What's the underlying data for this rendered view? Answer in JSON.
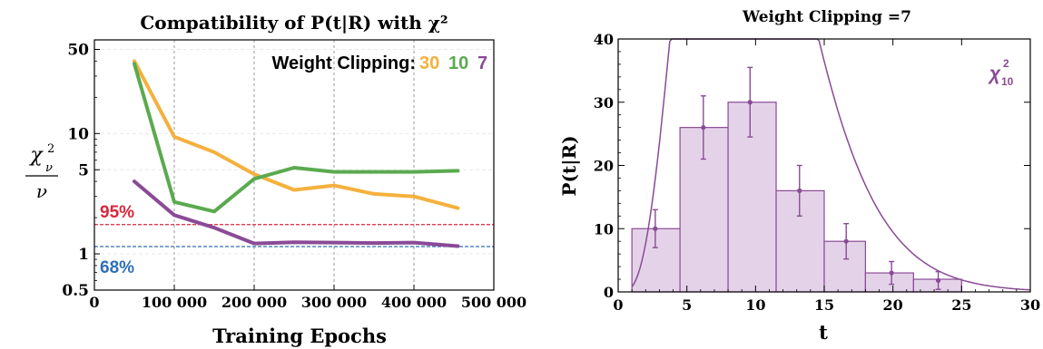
{
  "chart_data": [
    {
      "type": "line",
      "title": "Compatibility of P(t|R) with χ²",
      "xlabel": "Training Epochs",
      "ylabel": "χ²ν / ν",
      "yscale": "log",
      "xlim": [
        0,
        500000
      ],
      "ylim": [
        0.5,
        60
      ],
      "xticks": [
        0,
        100000,
        200000,
        300000,
        400000,
        500000
      ],
      "xtick_labels": [
        "0",
        "100 000",
        "200 000",
        "300 000",
        "400 000",
        "500 000"
      ],
      "yticks": [
        0.5,
        1,
        5,
        10,
        50
      ],
      "ytick_labels": [
        "0.5",
        "1",
        "5",
        "10",
        "50"
      ],
      "grid": true,
      "legend": {
        "title": "Weight Clipping:",
        "position": "top-right"
      },
      "series": [
        {
          "name": "30",
          "color": "#f5b13d",
          "x": [
            50000,
            100000,
            150000,
            200000,
            250000,
            300000,
            350000,
            400000,
            455000
          ],
          "y": [
            40,
            9.4,
            7.0,
            4.6,
            3.4,
            3.7,
            3.15,
            3.0,
            2.4
          ]
        },
        {
          "name": "10",
          "color": "#5aaa4e",
          "x": [
            50000,
            100000,
            150000,
            200000,
            250000,
            300000,
            350000,
            400000,
            455000
          ],
          "y": [
            38,
            2.7,
            2.25,
            4.2,
            5.2,
            4.8,
            4.8,
            4.8,
            4.9
          ]
        },
        {
          "name": "7",
          "color": "#8a4a96",
          "x": [
            50000,
            100000,
            150000,
            200000,
            250000,
            300000,
            350000,
            400000,
            455000
          ],
          "y": [
            4.0,
            2.1,
            1.65,
            1.22,
            1.25,
            1.24,
            1.23,
            1.24,
            1.16
          ]
        }
      ],
      "reference_lines": [
        {
          "label": "95%",
          "y": 1.75,
          "color": "#d9283c"
        },
        {
          "label": "68%",
          "y": 1.15,
          "color": "#2e6fb7"
        }
      ]
    },
    {
      "type": "bar",
      "title": "Weight Clipping =7",
      "xlabel": "t",
      "ylabel": "P(t|R)",
      "xlim": [
        0,
        30
      ],
      "ylim": [
        0,
        40
      ],
      "xticks": [
        0,
        5,
        10,
        15,
        20,
        25,
        30
      ],
      "yticks": [
        0,
        10,
        20,
        30,
        40
      ],
      "color": "#8a4a96",
      "bins": [
        {
          "x0": 1,
          "x1": 4.5,
          "value": 10
        },
        {
          "x0": 4.5,
          "x1": 8,
          "value": 26
        },
        {
          "x0": 8,
          "x1": 11.5,
          "value": 30
        },
        {
          "x0": 11.5,
          "x1": 15,
          "value": 16
        },
        {
          "x0": 15,
          "x1": 18,
          "value": 8
        },
        {
          "x0": 18,
          "x1": 21.5,
          "value": 3
        },
        {
          "x0": 21.5,
          "x1": 25,
          "value": 2
        }
      ],
      "points": [
        {
          "x": 2.7,
          "y": 10,
          "err": 3
        },
        {
          "x": 6.2,
          "y": 26,
          "err": 5
        },
        {
          "x": 9.6,
          "y": 30,
          "err": 5.5
        },
        {
          "x": 13.2,
          "y": 16,
          "err": 4
        },
        {
          "x": 16.6,
          "y": 8,
          "err": 2.8
        },
        {
          "x": 19.9,
          "y": 3,
          "err": 1.8
        },
        {
          "x": 23.3,
          "y": 1.8,
          "err": 1.4
        }
      ],
      "curve_label": "χ²₁₀",
      "curve_dof": 10,
      "curve_scale": 1000
    }
  ]
}
